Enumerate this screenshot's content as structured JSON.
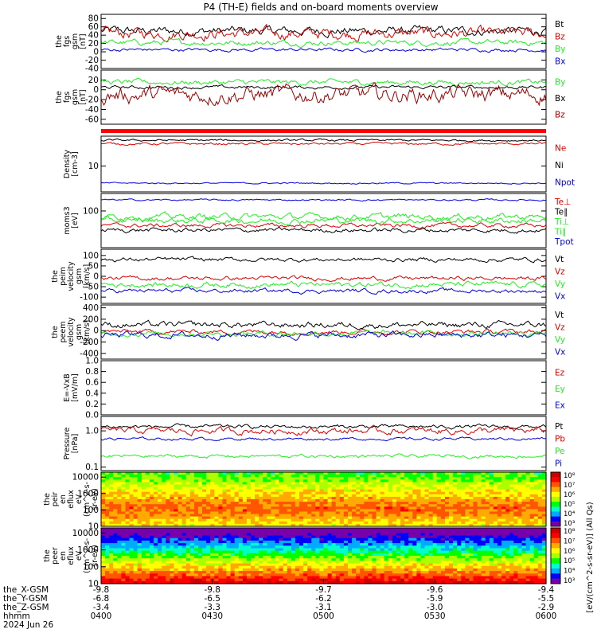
{
  "title": "P4 (TH-E) fields and on-board moments overview",
  "colors": {
    "black": "#000000",
    "red": "#dd0000",
    "dark_red": "#990000",
    "green": "#22ee22",
    "blue": "#0000dd",
    "strip_red": "#ff0000"
  },
  "chart_data": [
    {
      "id": "fgs_gsm",
      "type": "line",
      "ylabel": [
        "the",
        "fgs",
        "gsm",
        "[nT]"
      ],
      "ylim": [
        -40,
        90
      ],
      "yticks": [
        "80",
        "60",
        "40",
        "20",
        "0",
        "-20",
        "-40"
      ],
      "series": [
        {
          "name": "Bt",
          "color": "#000000",
          "base": 50,
          "amp": 16
        },
        {
          "name": "Bz",
          "color": "#dd0000",
          "base": 44,
          "amp": 20
        },
        {
          "name": "By",
          "color": "#22ee22",
          "base": 22,
          "amp": 10
        },
        {
          "name": "Bx",
          "color": "#0000dd",
          "base": 5,
          "amp": 6
        }
      ]
    },
    {
      "id": "fgs_gsm_nobt",
      "type": "line",
      "ylabel": [
        "the",
        "fgs",
        "gsm",
        "[nT]"
      ],
      "ylim": [
        -70,
        40
      ],
      "yticks": [
        "20",
        "0",
        "-20",
        "-40",
        "-60"
      ],
      "series": [
        {
          "name": "By",
          "color": "#22ee22",
          "base": 15,
          "amp": 8
        },
        {
          "name": "Bx",
          "color": "#000000",
          "base": 5,
          "amp": 5
        },
        {
          "name": "Bz",
          "color": "#990000",
          "base": -10,
          "amp": 25
        }
      ]
    },
    {
      "id": "density",
      "type": "line",
      "ylabel": [
        "Density",
        "[cm-3]"
      ],
      "ylim": [
        3,
        40
      ],
      "yticks": [
        "10"
      ],
      "series": [
        {
          "name": "Ne",
          "color": "#dd0000",
          "base": 28,
          "amp": 3
        },
        {
          "name": "Ni",
          "color": "#000000",
          "base": 33,
          "amp": 3
        },
        {
          "name": "Npot",
          "color": "#0000dd",
          "base": 4.5,
          "amp": 0.3
        }
      ]
    },
    {
      "id": "moms_temp",
      "type": "line",
      "ylabel": [
        "moms3",
        "[eV]"
      ],
      "ylim": [
        10,
        300
      ],
      "yticks": [
        "100"
      ],
      "series": [
        {
          "name": "Te⊥",
          "color": "#dd0000",
          "base": 40,
          "amp": 10
        },
        {
          "name": "Te∥",
          "color": "#000000",
          "base": 30,
          "amp": 8
        },
        {
          "name": "Ti⊥",
          "color": "#22ee22",
          "base": 70,
          "amp": 25
        },
        {
          "name": "Ti∥",
          "color": "#22ee22",
          "base": 55,
          "amp": 20
        },
        {
          "name": "Tpot",
          "color": "#0000dd",
          "base": 200,
          "amp": 20
        }
      ]
    },
    {
      "id": "peim_velocity",
      "type": "line",
      "ylabel": [
        "the",
        "peim",
        "velocity",
        "gsm",
        "[km/s]"
      ],
      "ylim": [
        -130,
        130
      ],
      "yticks": [
        "100",
        "50",
        "0",
        "-50",
        "-100"
      ],
      "series": [
        {
          "name": "Vt",
          "color": "#000000",
          "base": 80,
          "amp": 15
        },
        {
          "name": "Vz",
          "color": "#dd0000",
          "base": -10,
          "amp": 15
        },
        {
          "name": "Vy",
          "color": "#22ee22",
          "base": -40,
          "amp": 20
        },
        {
          "name": "Vx",
          "color": "#0000dd",
          "base": -70,
          "amp": 15
        }
      ]
    },
    {
      "id": "peem_velocity",
      "type": "line",
      "ylabel": [
        "the",
        "peem",
        "velocity",
        "gsm",
        "[km/s]"
      ],
      "ylim": [
        -500,
        450
      ],
      "yticks": [
        "400",
        "200",
        "0",
        "-200",
        "-400"
      ],
      "series": [
        {
          "name": "Vt",
          "color": "#000000",
          "base": 100,
          "amp": 80
        },
        {
          "name": "Vz",
          "color": "#dd0000",
          "base": -20,
          "amp": 60
        },
        {
          "name": "Vy",
          "color": "#22ee22",
          "base": -50,
          "amp": 70
        },
        {
          "name": "Vx",
          "color": "#0000dd",
          "base": -80,
          "amp": 80
        }
      ]
    },
    {
      "id": "e_field",
      "type": "line",
      "ylabel": [
        "E=-VxB",
        "[mV/m]"
      ],
      "ylim": [
        0,
        1
      ],
      "yticks": [
        "1.0",
        "0.8",
        "0.6",
        "0.4",
        "0.2",
        "0.0"
      ],
      "series": [
        {
          "name": "Ez",
          "color": "#dd0000",
          "base": null,
          "amp": 0
        },
        {
          "name": "Ey",
          "color": "#22ee22",
          "base": null,
          "amp": 0
        },
        {
          "name": "Ex",
          "color": "#0000dd",
          "base": null,
          "amp": 0
        }
      ]
    },
    {
      "id": "pressure",
      "type": "line",
      "ylabel": [
        "Pressure",
        "[nPa]"
      ],
      "ylim": [
        0.08,
        2.5
      ],
      "yticks": [
        "1.0",
        "0.1"
      ],
      "series": [
        {
          "name": "Pt",
          "color": "#000000",
          "base": 1.3,
          "amp": 0.3
        },
        {
          "name": "Pb",
          "color": "#dd0000",
          "base": 1.0,
          "amp": 0.4
        },
        {
          "name": "Pe",
          "color": "#22ee22",
          "base": 0.2,
          "amp": 0.04
        },
        {
          "name": "Pi",
          "color": "#0000dd",
          "base": 0.6,
          "amp": 0.1
        }
      ]
    },
    {
      "id": "peir_en_eflux",
      "type": "heatmap",
      "ylabel": [
        "the",
        "peir",
        "en",
        "eflux",
        "eV",
        "(cm^2-s-",
        "sr-eV)"
      ],
      "ylim": [
        10,
        20000
      ],
      "yticks": [
        "10000",
        "1000",
        "100",
        "10"
      ]
    },
    {
      "id": "peer_en_eflux",
      "type": "heatmap",
      "ylabel": [
        "the",
        "peer",
        "en",
        "eflux",
        "eV",
        "(cm^2-s-",
        "sr-eV)"
      ],
      "ylim": [
        10,
        20000
      ],
      "yticks": [
        "10000",
        "1000",
        "100",
        "10"
      ]
    }
  ],
  "colorbar": {
    "label": "[eV/(cm^2-s-sr-eV)] (All Qs)",
    "ticks": [
      "10⁸",
      "10⁷",
      "10⁶",
      "10⁵",
      "10⁴",
      "10³"
    ]
  },
  "xaxis": {
    "rows": [
      {
        "label": "the_X-GSM",
        "values": [
          "-9.8",
          "-9.8",
          "-9.7",
          "-9.6",
          "-9.4"
        ]
      },
      {
        "label": "the_Y-GSM",
        "values": [
          "-6.8",
          "-6.5",
          "-6.2",
          "-5.9",
          "-5.5"
        ]
      },
      {
        "label": "the_Z-GSM",
        "values": [
          "-3.4",
          "-3.3",
          "-3.1",
          "-3.0",
          "-2.9"
        ]
      },
      {
        "label": "hhmm",
        "values": [
          "0400",
          "0430",
          "0500",
          "0530",
          "0600"
        ]
      }
    ],
    "date": "2024 Jun 26"
  }
}
